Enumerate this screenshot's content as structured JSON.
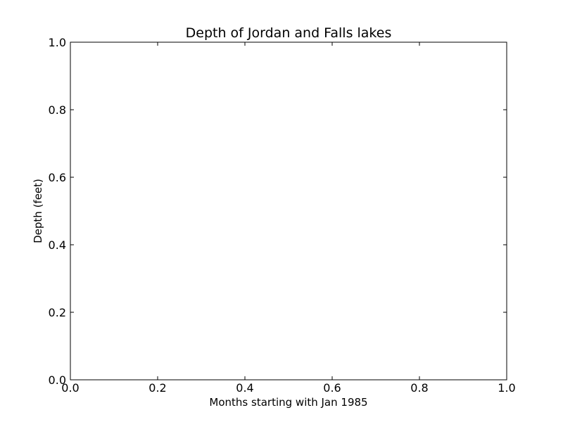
{
  "chart_data": {
    "type": "line",
    "title": "Depth of Jordan and Falls lakes",
    "xlabel": "Months starting with Jan 1985",
    "ylabel": "Depth (feet)",
    "xlim": [
      0.0,
      1.0
    ],
    "ylim": [
      0.0,
      1.0
    ],
    "x_ticks": [
      "0.0",
      "0.2",
      "0.4",
      "0.6",
      "0.8",
      "1.0"
    ],
    "y_ticks": [
      "0.0",
      "0.2",
      "0.4",
      "0.6",
      "0.8",
      "1.0"
    ],
    "series": [],
    "grid": false,
    "legend": "none"
  }
}
